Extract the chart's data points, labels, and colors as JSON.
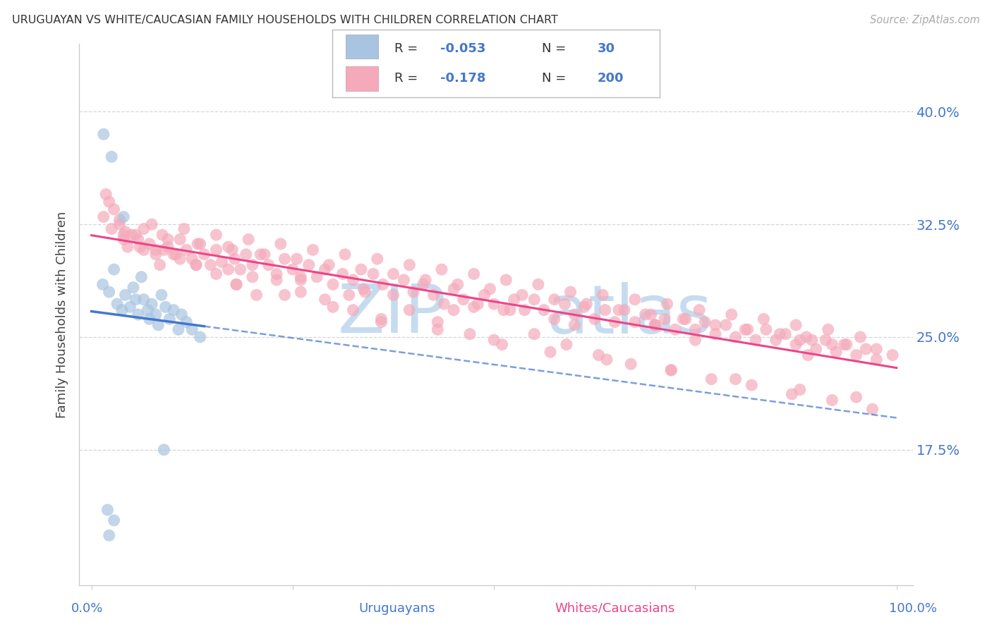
{
  "title": "URUGUAYAN VS WHITE/CAUCASIAN FAMILY HOUSEHOLDS WITH CHILDREN CORRELATION CHART",
  "source": "Source: ZipAtlas.com",
  "ylabel": "Family Households with Children",
  "blue_color": "#A8C4E0",
  "pink_color": "#F4AABB",
  "blue_line_color": "#4477CC",
  "pink_line_color": "#EE4488",
  "grid_color": "#CCCCCC",
  "axis_label_color": "#4477CC",
  "watermark_color": "#C5DCF0",
  "legend_text_color": "#333333",
  "legend_value_color": "#4477CC",
  "ytick_values": [
    0.175,
    0.25,
    0.325,
    0.4
  ],
  "ylim": [
    0.085,
    0.445
  ],
  "xlim": [
    -0.015,
    1.02
  ],
  "legend_label_1": "Uruguayans",
  "legend_label_2": "Whites/Caucasians",
  "uru_x": [
    0.014,
    0.022,
    0.028,
    0.032,
    0.038,
    0.042,
    0.048,
    0.052,
    0.055,
    0.058,
    0.062,
    0.065,
    0.07,
    0.072,
    0.075,
    0.08,
    0.083,
    0.087,
    0.092,
    0.097,
    0.102,
    0.108,
    0.112,
    0.118,
    0.125,
    0.135,
    0.015,
    0.025,
    0.04,
    0.09
  ],
  "uru_y": [
    0.285,
    0.28,
    0.295,
    0.272,
    0.268,
    0.278,
    0.27,
    0.283,
    0.275,
    0.265,
    0.29,
    0.275,
    0.268,
    0.262,
    0.272,
    0.265,
    0.258,
    0.278,
    0.27,
    0.262,
    0.268,
    0.255,
    0.265,
    0.26,
    0.255,
    0.25,
    0.385,
    0.37,
    0.33,
    0.175
  ],
  "white_x": [
    0.015,
    0.022,
    0.028,
    0.035,
    0.042,
    0.05,
    0.058,
    0.065,
    0.072,
    0.08,
    0.088,
    0.095,
    0.102,
    0.11,
    0.118,
    0.125,
    0.132,
    0.14,
    0.148,
    0.155,
    0.162,
    0.17,
    0.178,
    0.185,
    0.192,
    0.2,
    0.21,
    0.22,
    0.23,
    0.24,
    0.25,
    0.26,
    0.27,
    0.28,
    0.29,
    0.3,
    0.312,
    0.325,
    0.338,
    0.35,
    0.362,
    0.375,
    0.388,
    0.4,
    0.412,
    0.425,
    0.438,
    0.45,
    0.462,
    0.475,
    0.488,
    0.5,
    0.512,
    0.525,
    0.538,
    0.55,
    0.562,
    0.575,
    0.588,
    0.6,
    0.612,
    0.625,
    0.638,
    0.65,
    0.662,
    0.675,
    0.688,
    0.7,
    0.712,
    0.725,
    0.738,
    0.75,
    0.762,
    0.775,
    0.788,
    0.8,
    0.812,
    0.825,
    0.838,
    0.85,
    0.862,
    0.875,
    0.888,
    0.9,
    0.912,
    0.925,
    0.938,
    0.95,
    0.962,
    0.975,
    0.018,
    0.035,
    0.055,
    0.075,
    0.095,
    0.115,
    0.135,
    0.155,
    0.175,
    0.195,
    0.215,
    0.235,
    0.255,
    0.275,
    0.295,
    0.315,
    0.335,
    0.355,
    0.375,
    0.395,
    0.415,
    0.435,
    0.455,
    0.475,
    0.495,
    0.515,
    0.535,
    0.555,
    0.575,
    0.595,
    0.615,
    0.635,
    0.655,
    0.675,
    0.695,
    0.715,
    0.735,
    0.755,
    0.775,
    0.795,
    0.815,
    0.835,
    0.855,
    0.875,
    0.895,
    0.915,
    0.935,
    0.955,
    0.975,
    0.995,
    0.025,
    0.045,
    0.065,
    0.085,
    0.105,
    0.13,
    0.155,
    0.18,
    0.205,
    0.23,
    0.26,
    0.29,
    0.325,
    0.36,
    0.395,
    0.43,
    0.47,
    0.51,
    0.55,
    0.59,
    0.63,
    0.67,
    0.72,
    0.77,
    0.82,
    0.87,
    0.92,
    0.97,
    0.04,
    0.08,
    0.13,
    0.18,
    0.24,
    0.3,
    0.36,
    0.43,
    0.5,
    0.57,
    0.64,
    0.72,
    0.8,
    0.88,
    0.95,
    0.04,
    0.11,
    0.2,
    0.32,
    0.45,
    0.6,
    0.75,
    0.89,
    0.06,
    0.17,
    0.34,
    0.52,
    0.7,
    0.88,
    0.09,
    0.26,
    0.48,
    0.7,
    0.92
  ],
  "white_y": [
    0.33,
    0.34,
    0.335,
    0.325,
    0.32,
    0.318,
    0.315,
    0.322,
    0.312,
    0.308,
    0.318,
    0.31,
    0.305,
    0.315,
    0.308,
    0.302,
    0.312,
    0.305,
    0.298,
    0.308,
    0.3,
    0.31,
    0.302,
    0.295,
    0.305,
    0.298,
    0.305,
    0.298,
    0.292,
    0.302,
    0.295,
    0.288,
    0.298,
    0.29,
    0.295,
    0.285,
    0.292,
    0.288,
    0.282,
    0.292,
    0.285,
    0.278,
    0.288,
    0.28,
    0.285,
    0.278,
    0.272,
    0.282,
    0.275,
    0.27,
    0.278,
    0.272,
    0.268,
    0.275,
    0.268,
    0.275,
    0.268,
    0.262,
    0.272,
    0.265,
    0.27,
    0.262,
    0.268,
    0.26,
    0.268,
    0.26,
    0.265,
    0.258,
    0.262,
    0.255,
    0.262,
    0.255,
    0.26,
    0.252,
    0.258,
    0.25,
    0.255,
    0.248,
    0.255,
    0.248,
    0.252,
    0.245,
    0.25,
    0.242,
    0.248,
    0.24,
    0.245,
    0.238,
    0.242,
    0.235,
    0.345,
    0.328,
    0.318,
    0.325,
    0.315,
    0.322,
    0.312,
    0.318,
    0.308,
    0.315,
    0.305,
    0.312,
    0.302,
    0.308,
    0.298,
    0.305,
    0.295,
    0.302,
    0.292,
    0.298,
    0.288,
    0.295,
    0.285,
    0.292,
    0.282,
    0.288,
    0.278,
    0.285,
    0.275,
    0.28,
    0.272,
    0.278,
    0.268,
    0.275,
    0.265,
    0.272,
    0.262,
    0.268,
    0.258,
    0.265,
    0.255,
    0.262,
    0.252,
    0.258,
    0.248,
    0.255,
    0.245,
    0.25,
    0.242,
    0.238,
    0.322,
    0.31,
    0.308,
    0.298,
    0.305,
    0.298,
    0.292,
    0.285,
    0.278,
    0.288,
    0.28,
    0.275,
    0.268,
    0.26,
    0.268,
    0.26,
    0.252,
    0.245,
    0.252,
    0.245,
    0.238,
    0.232,
    0.228,
    0.222,
    0.218,
    0.212,
    0.208,
    0.202,
    0.318,
    0.305,
    0.298,
    0.285,
    0.278,
    0.27,
    0.262,
    0.255,
    0.248,
    0.24,
    0.235,
    0.228,
    0.222,
    0.215,
    0.21,
    0.315,
    0.302,
    0.29,
    0.278,
    0.268,
    0.258,
    0.248,
    0.238,
    0.31,
    0.295,
    0.28,
    0.268,
    0.258,
    0.248,
    0.308,
    0.29,
    0.272,
    0.258,
    0.245
  ]
}
